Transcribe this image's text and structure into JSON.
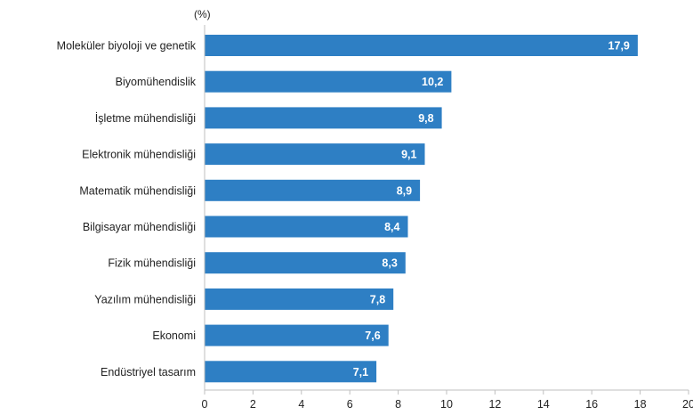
{
  "chart_data": {
    "type": "bar",
    "orientation": "horizontal",
    "unit": "(%)",
    "categories": [
      "Moleküler biyoloji ve genetik",
      "Biyomühendislik",
      "İşletme mühendisliği",
      "Elektronik mühendisliği",
      "Matematik mühendisliği",
      "Bilgisayar mühendisliği",
      "Fizik mühendisliği",
      "Yazılım mühendisliği",
      "Ekonomi",
      "Endüstriyel tasarım"
    ],
    "values": [
      17.9,
      10.2,
      9.8,
      9.1,
      8.9,
      8.4,
      8.3,
      7.8,
      7.6,
      7.1
    ],
    "value_labels": [
      "17,9",
      "10,2",
      "9,8",
      "9,1",
      "8,9",
      "8,4",
      "8,3",
      "7,8",
      "7,6",
      "7,1"
    ],
    "xlim": [
      0,
      20
    ],
    "ticks": [
      0,
      2,
      4,
      6,
      8,
      10,
      12,
      14,
      16,
      18,
      20
    ],
    "tick_labels": [
      "0",
      "2",
      "4",
      "6",
      "8",
      "10",
      "12",
      "14",
      "16",
      "18",
      "20"
    ],
    "grid": false,
    "bar_color": "#2e7fc4",
    "axis_color": "#bfbfbf"
  }
}
